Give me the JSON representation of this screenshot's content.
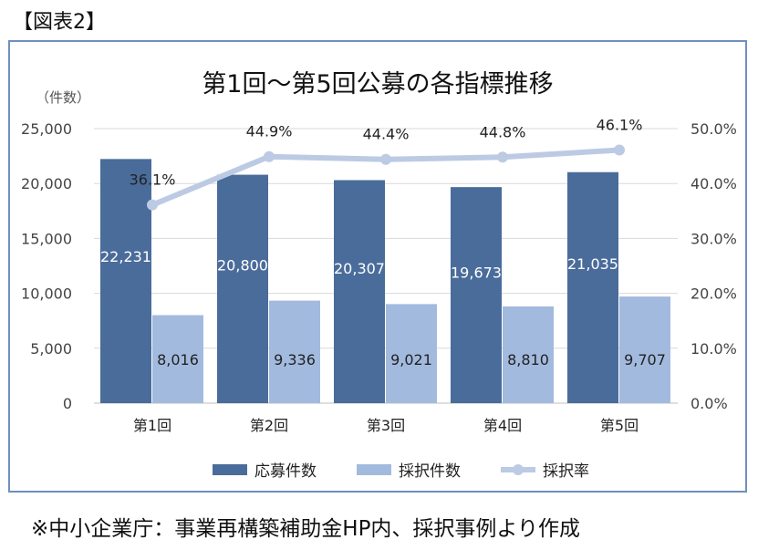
{
  "figure_label": "【図表2】",
  "source_note": "※中小企業庁：事業再構築補助金HP内、採択事例より作成",
  "chart_data": {
    "type": "bar",
    "title": "第1回～第5回公募の各指標推移",
    "ylabel": "（件数）",
    "categories": [
      "第1回",
      "第2回",
      "第3回",
      "第4回",
      "第5回"
    ],
    "ylim": [
      0,
      25000
    ],
    "y_ticks": [
      "0",
      "5,000",
      "10,000",
      "15,000",
      "20,000",
      "25,000"
    ],
    "y2lim": [
      0,
      50
    ],
    "y2_ticks": [
      "0.0%",
      "10.0%",
      "20.0%",
      "30.0%",
      "40.0%",
      "50.0%"
    ],
    "grid": true,
    "legend_position": "bottom",
    "series": [
      {
        "name": "応募件数",
        "kind": "bar",
        "axis": "left",
        "color": "#4a6c9b",
        "values": [
          22231,
          20800,
          20307,
          19673,
          21035
        ],
        "labels": [
          "22,231",
          "20,800",
          "20,307",
          "19,673",
          "21,035"
        ]
      },
      {
        "name": "採択件数",
        "kind": "bar",
        "axis": "left",
        "color": "#a3badf",
        "values": [
          8016,
          9336,
          9021,
          8810,
          9707
        ],
        "labels": [
          "8,016",
          "9,336",
          "9,021",
          "8,810",
          "9,707"
        ]
      },
      {
        "name": "採択率",
        "kind": "line",
        "axis": "right",
        "color": "#bccbe3",
        "values": [
          36.1,
          44.9,
          44.4,
          44.8,
          46.1
        ],
        "labels": [
          "36.1%",
          "44.9%",
          "44.4%",
          "44.8%",
          "46.1%"
        ]
      }
    ]
  }
}
